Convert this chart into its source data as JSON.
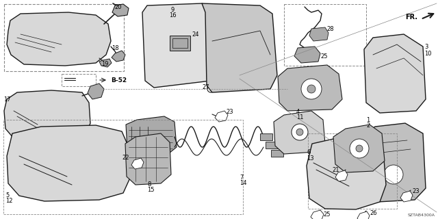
{
  "bg_color": "#ffffff",
  "line_color": "#1a1a1a",
  "gray_light": "#d8d8d8",
  "gray_mid": "#aaaaaa",
  "gray_dark": "#888888",
  "dashed_color": "#888888",
  "diagram_id": "SZTAB4300A"
}
